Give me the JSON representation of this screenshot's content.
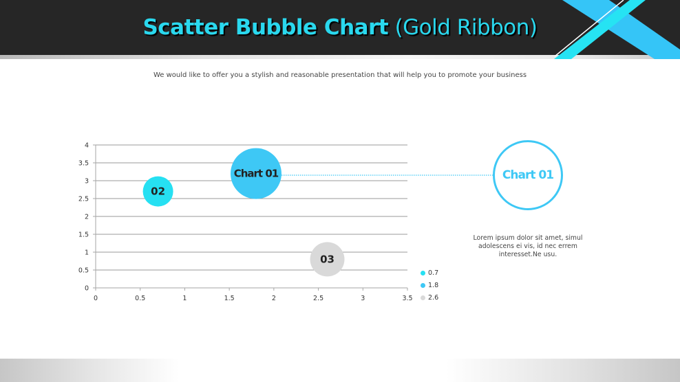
{
  "header": {
    "title_bold": "Scatter Bubble Chart",
    "title_light": "(Gold Ribbon)"
  },
  "subtitle": "We would like to offer you a stylish and reasonable presentation that will help you to promote your business",
  "callout": {
    "label": "Chart 01",
    "text": "Lorem ipsum dolor sit amet, simul adolescens ei vis, id nec errem interesset.Ne usu."
  },
  "legend": [
    {
      "label": "0.7",
      "color": "#26e0f2"
    },
    {
      "label": "1.8",
      "color": "#3ec8f5"
    },
    {
      "label": "2.6",
      "color": "#d9d9d9"
    }
  ],
  "colors": {
    "header_bg": "#262626",
    "title": "#2ad8ee",
    "accent": "#3ec8f5",
    "accent_light": "#26e0f2",
    "gray_bubble": "#d9d9d9"
  },
  "chart_data": {
    "type": "scatter",
    "subtype": "bubble",
    "title": "Scatter Bubble Chart (Gold Ribbon)",
    "xlabel": "",
    "ylabel": "",
    "xlim": [
      0,
      3.5
    ],
    "ylim": [
      0,
      4
    ],
    "x_ticks": [
      "0",
      "0.5",
      "1",
      "1.5",
      "2",
      "2.5",
      "3",
      "3.5"
    ],
    "y_ticks": [
      "0",
      "0.5",
      "1",
      "1.5",
      "2",
      "2.5",
      "3",
      "3.5",
      "4"
    ],
    "grid": "horizontal",
    "legend_position": "right-bottom",
    "series": [
      {
        "name": "0.7",
        "x": 0.7,
        "y": 2.7,
        "size": 22,
        "label": "02",
        "color": "#26e0f2"
      },
      {
        "name": "1.8",
        "x": 1.8,
        "y": 3.2,
        "size": 37,
        "label": "Chart 01",
        "color": "#3ec8f5"
      },
      {
        "name": "2.6",
        "x": 2.6,
        "y": 0.8,
        "size": 25,
        "label": "03",
        "color": "#d9d9d9"
      }
    ]
  }
}
